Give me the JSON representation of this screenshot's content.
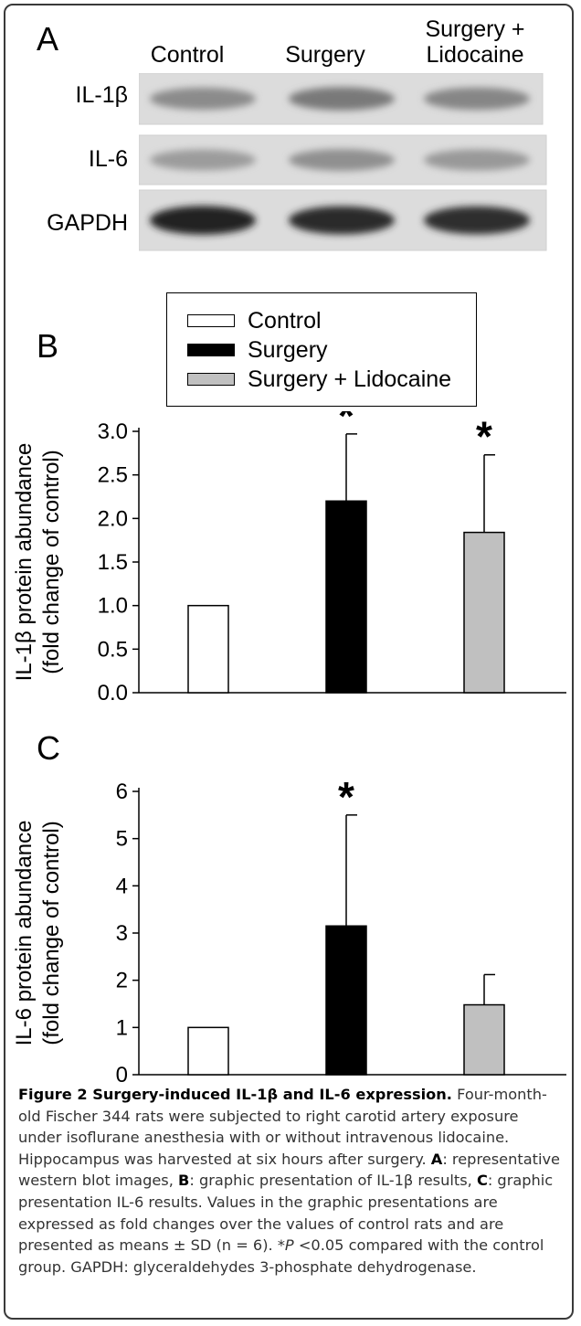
{
  "panel_a": {
    "letter": "A",
    "columns": [
      "Control",
      "Surgery",
      "Surgery +\nLidocaine"
    ],
    "rows": [
      {
        "label": "IL-1β",
        "intensity": [
          0.35,
          0.45,
          0.38
        ]
      },
      {
        "label": "IL-6",
        "intensity": [
          0.25,
          0.32,
          0.27
        ]
      },
      {
        "label": "GAPDH",
        "intensity": [
          0.95,
          0.9,
          0.88
        ]
      }
    ]
  },
  "legend": {
    "items": [
      {
        "label": "Control",
        "color": "#ffffff"
      },
      {
        "label": "Surgery",
        "color": "#000000"
      },
      {
        "label": "Surgery + Lidocaine",
        "color": "#c0c0c0"
      }
    ]
  },
  "chart_data": [
    {
      "panel": "B",
      "type": "bar",
      "categories": [
        "Control",
        "Surgery",
        "Surgery + Lidocaine"
      ],
      "values": [
        1.0,
        2.2,
        1.84
      ],
      "errors": [
        0,
        0.77,
        0.89
      ],
      "significant": [
        false,
        true,
        true
      ],
      "significance_marker": "*",
      "colors": [
        "#ffffff",
        "#000000",
        "#c0c0c0"
      ],
      "ylabel_line1": "IL-1β protein abundance",
      "ylabel_line2": "(fold change of control)",
      "ylim": [
        0,
        3.0
      ],
      "yticks": [
        "0.0",
        "0.5",
        "1.0",
        "1.5",
        "2.0",
        "2.5",
        "3.0"
      ],
      "ytick_values": [
        0,
        0.5,
        1.0,
        1.5,
        2.0,
        2.5,
        3.0
      ]
    },
    {
      "panel": "C",
      "type": "bar",
      "categories": [
        "Control",
        "Surgery",
        "Surgery + Lidocaine"
      ],
      "values": [
        1.0,
        3.15,
        1.48
      ],
      "errors": [
        0,
        2.35,
        0.64
      ],
      "significant": [
        false,
        true,
        false
      ],
      "significance_marker": "*",
      "colors": [
        "#ffffff",
        "#000000",
        "#c0c0c0"
      ],
      "ylabel_line1": "IL-6 protein abundance",
      "ylabel_line2": "(fold change of control)",
      "ylim": [
        0,
        6
      ],
      "yticks": [
        "0",
        "1",
        "2",
        "3",
        "4",
        "5",
        "6"
      ],
      "ytick_values": [
        0,
        1,
        2,
        3,
        4,
        5,
        6
      ]
    }
  ],
  "caption": {
    "title": "Figure 2 Surgery-induced IL-1β and IL-6 expression.",
    "intro": "Four-month-old Fischer 344 rats were subjected to right carotid artery exposure under isoflurane anesthesia with or without intravenous lidocaine. Hippocampus was harvested at six hours after surgery.",
    "a_letter": "A",
    "a_text": ": representative western blot images,",
    "b_letter": "B",
    "b_text": ": graphic presentation of IL-1β results,",
    "c_letter": "C",
    "c_text": ": graphic presentation IL-6 results. Values in the graphic presentations are expressed as fold changes over the values of control rats and are presented as means ± SD (n = 6). *",
    "p_italic": "P",
    "tail": " <0.05 compared with the control group. GAPDH: glyceraldehydes 3-phosphate dehydrogenase."
  }
}
